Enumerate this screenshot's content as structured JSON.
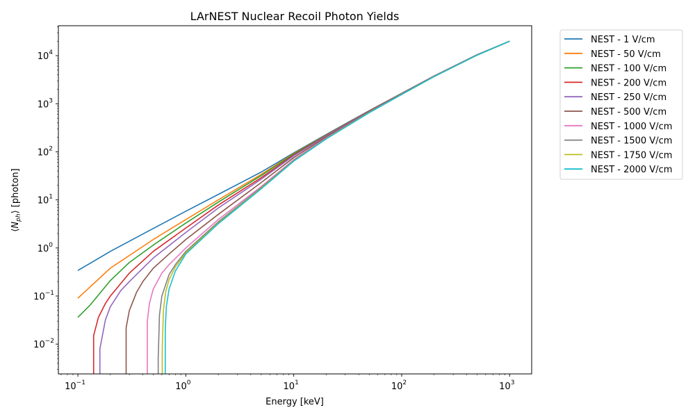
{
  "chart_data": {
    "type": "line",
    "title": "LArNEST Nuclear Recoil Photon Yields",
    "xlabel": "Energy [keV]",
    "ylabel": "⟨N_ph⟩ [photon]",
    "xscale": "log",
    "yscale": "log",
    "xlim": [
      0.066,
      1600
    ],
    "ylim": [
      0.0024,
      42000
    ],
    "xticks": [
      {
        "value": 0.1,
        "base": "10",
        "exp": "−1"
      },
      {
        "value": 1,
        "base": "10",
        "exp": "0"
      },
      {
        "value": 10,
        "base": "10",
        "exp": "1"
      },
      {
        "value": 100,
        "base": "10",
        "exp": "2"
      },
      {
        "value": 1000,
        "base": "10",
        "exp": "3"
      }
    ],
    "yticks": [
      {
        "value": 0.01,
        "base": "10",
        "exp": "−2"
      },
      {
        "value": 0.1,
        "base": "10",
        "exp": "−1"
      },
      {
        "value": 1,
        "base": "10",
        "exp": "0"
      },
      {
        "value": 10,
        "base": "10",
        "exp": "1"
      },
      {
        "value": 100,
        "base": "10",
        "exp": "2"
      },
      {
        "value": 1000,
        "base": "10",
        "exp": "3"
      },
      {
        "value": 10000,
        "base": "10",
        "exp": "4"
      }
    ],
    "grid": false,
    "legend_position": "outside-top-right",
    "series": [
      {
        "name": "NEST - 1 V/cm",
        "color": "#1f77b4",
        "points": [
          [
            0.1,
            0.34
          ],
          [
            0.2,
            0.85
          ],
          [
            0.5,
            2.55
          ],
          [
            1,
            5.8
          ],
          [
            2,
            13
          ],
          [
            5,
            38
          ],
          [
            10,
            95
          ],
          [
            20,
            230
          ],
          [
            50,
            720
          ],
          [
            100,
            1650
          ],
          [
            200,
            3800
          ],
          [
            500,
            10500
          ],
          [
            1000,
            20000
          ]
        ]
      },
      {
        "name": "NEST - 50 V/cm",
        "color": "#ff7f0e",
        "points": [
          [
            0.1,
            0.09
          ],
          [
            0.2,
            0.38
          ],
          [
            0.5,
            1.5
          ],
          [
            1,
            3.9
          ],
          [
            2,
            10
          ],
          [
            5,
            34
          ],
          [
            10,
            92
          ],
          [
            20,
            225
          ],
          [
            50,
            710
          ],
          [
            100,
            1640
          ],
          [
            200,
            3780
          ],
          [
            500,
            10450
          ],
          [
            1000,
            20000
          ]
        ]
      },
      {
        "name": "NEST - 100 V/cm",
        "color": "#2ca02c",
        "points": [
          [
            0.1,
            0.036
          ],
          [
            0.13,
            0.065
          ],
          [
            0.2,
            0.21
          ],
          [
            0.3,
            0.5
          ],
          [
            0.5,
            1.15
          ],
          [
            1,
            3.3
          ],
          [
            2,
            9
          ],
          [
            5,
            32
          ],
          [
            10,
            90
          ],
          [
            20,
            222
          ],
          [
            50,
            705
          ],
          [
            100,
            1630
          ],
          [
            200,
            3770
          ],
          [
            500,
            10400
          ],
          [
            1000,
            20000
          ]
        ]
      },
      {
        "name": "NEST - 200 V/cm",
        "color": "#d62728",
        "points": [
          [
            0.14,
            0.0024
          ],
          [
            0.14,
            0.015
          ],
          [
            0.155,
            0.036
          ],
          [
            0.18,
            0.07
          ],
          [
            0.2,
            0.1
          ],
          [
            0.3,
            0.3
          ],
          [
            0.5,
            0.85
          ],
          [
            1,
            2.6
          ],
          [
            2,
            7.8
          ],
          [
            5,
            29
          ],
          [
            10,
            86
          ],
          [
            20,
            218
          ],
          [
            50,
            700
          ],
          [
            100,
            1620
          ],
          [
            200,
            3760
          ],
          [
            500,
            10400
          ],
          [
            1000,
            20000
          ]
        ]
      },
      {
        "name": "NEST - 250 V/cm",
        "color": "#9467bd",
        "points": [
          [
            0.16,
            0.0024
          ],
          [
            0.16,
            0.008
          ],
          [
            0.18,
            0.032
          ],
          [
            0.2,
            0.06
          ],
          [
            0.25,
            0.13
          ],
          [
            0.3,
            0.2
          ],
          [
            0.5,
            0.62
          ],
          [
            1,
            2.1
          ],
          [
            2,
            6.8
          ],
          [
            5,
            27
          ],
          [
            10,
            83
          ],
          [
            20,
            215
          ],
          [
            50,
            695
          ],
          [
            100,
            1615
          ],
          [
            200,
            3750
          ],
          [
            500,
            10380
          ],
          [
            1000,
            20000
          ]
        ]
      },
      {
        "name": "NEST - 500 V/cm",
        "color": "#8c564b",
        "points": [
          [
            0.28,
            0.0024
          ],
          [
            0.28,
            0.022
          ],
          [
            0.3,
            0.05
          ],
          [
            0.35,
            0.12
          ],
          [
            0.4,
            0.2
          ],
          [
            0.5,
            0.38
          ],
          [
            0.7,
            0.75
          ],
          [
            1,
            1.5
          ],
          [
            2,
            5
          ],
          [
            5,
            23
          ],
          [
            10,
            76
          ],
          [
            20,
            205
          ],
          [
            50,
            680
          ],
          [
            100,
            1600
          ],
          [
            200,
            3720
          ],
          [
            500,
            10350
          ],
          [
            1000,
            20000
          ]
        ]
      },
      {
        "name": "NEST - 1000 V/cm",
        "color": "#e377c2",
        "points": [
          [
            0.44,
            0.0024
          ],
          [
            0.44,
            0.03
          ],
          [
            0.46,
            0.07
          ],
          [
            0.5,
            0.14
          ],
          [
            0.6,
            0.3
          ],
          [
            0.7,
            0.45
          ],
          [
            1,
            1
          ],
          [
            2,
            3.9
          ],
          [
            5,
            19
          ],
          [
            10,
            69
          ],
          [
            20,
            195
          ],
          [
            50,
            665
          ],
          [
            100,
            1580
          ],
          [
            200,
            3700
          ],
          [
            500,
            10300
          ],
          [
            1000,
            20000
          ]
        ]
      },
      {
        "name": "NEST - 1500 V/cm",
        "color": "#7f7f7f",
        "points": [
          [
            0.555,
            0.0024
          ],
          [
            0.555,
            0.005
          ],
          [
            0.57,
            0.04
          ],
          [
            0.6,
            0.1
          ],
          [
            0.7,
            0.28
          ],
          [
            0.8,
            0.45
          ],
          [
            1,
            0.85
          ],
          [
            2,
            3.5
          ],
          [
            5,
            18
          ],
          [
            10,
            66
          ],
          [
            20,
            190
          ],
          [
            50,
            658
          ],
          [
            100,
            1570
          ],
          [
            200,
            3690
          ],
          [
            500,
            10280
          ],
          [
            1000,
            20000
          ]
        ]
      },
      {
        "name": "NEST - 1750 V/cm",
        "color": "#bcbd22",
        "points": [
          [
            0.605,
            0.0024
          ],
          [
            0.605,
            0.008
          ],
          [
            0.62,
            0.05
          ],
          [
            0.65,
            0.12
          ],
          [
            0.7,
            0.22
          ],
          [
            0.8,
            0.4
          ],
          [
            1,
            0.8
          ],
          [
            2,
            3.3
          ],
          [
            5,
            17.5
          ],
          [
            10,
            65
          ],
          [
            20,
            188
          ],
          [
            50,
            655
          ],
          [
            100,
            1565
          ],
          [
            200,
            3685
          ],
          [
            500,
            10270
          ],
          [
            1000,
            20000
          ]
        ]
      },
      {
        "name": "NEST - 2000 V/cm",
        "color": "#17becf",
        "points": [
          [
            0.645,
            0.0024
          ],
          [
            0.645,
            0.02
          ],
          [
            0.66,
            0.06
          ],
          [
            0.7,
            0.14
          ],
          [
            0.8,
            0.33
          ],
          [
            1,
            0.75
          ],
          [
            2,
            3.2
          ],
          [
            5,
            17
          ],
          [
            10,
            64
          ],
          [
            20,
            186
          ],
          [
            50,
            650
          ],
          [
            100,
            1560
          ],
          [
            200,
            3680
          ],
          [
            500,
            10260
          ],
          [
            1000,
            20000
          ]
        ]
      }
    ]
  }
}
